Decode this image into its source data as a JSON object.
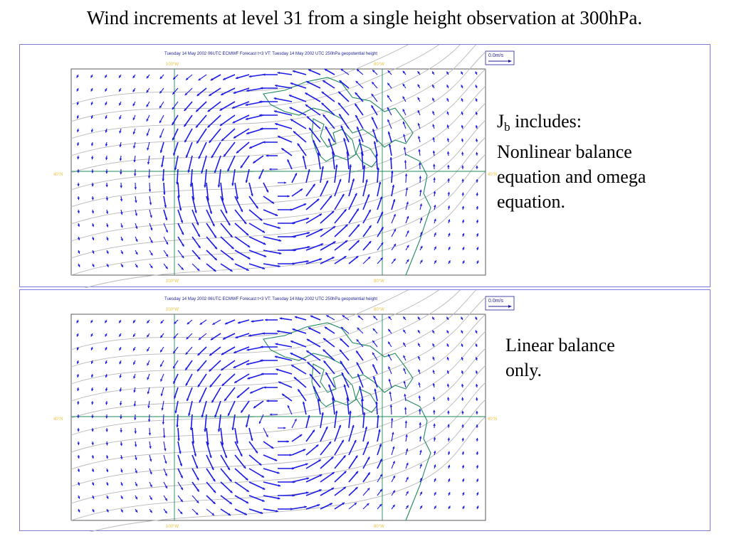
{
  "title": "Wind increments at level 31 from a single height observation at 300hPa.",
  "panels": [
    {
      "header": "Tuesday 14 May 2002 06UTC ECMWF  Forecast t+3 VT: Tuesday 14 May 2002  UTC 250hPa geopotential height",
      "legend": "0.0m/s",
      "lon_labels": [
        "100°W",
        "80°W"
      ],
      "lat_label": "40°N",
      "side_text": {
        "prefix": "J",
        "subscript": "b",
        "rest_line1": " includes:",
        "line2": "Nonlinear balance",
        "line3": "equation and omega",
        "line4": "equation."
      }
    },
    {
      "header": "Tuesday 14 May 2002 06UTC ECMWF  Forecast t+3 VT: Tuesday 14 May 2002  UTC 250hPa geopotential height",
      "legend": "0.0m/s",
      "lon_labels": [
        "100°W",
        "80°W"
      ],
      "lat_label": "40°N",
      "side_text": {
        "line1": "Linear balance",
        "line2": "only."
      }
    }
  ],
  "colors": {
    "arrow": "#1a1ae6",
    "coast": "#1f8a5a",
    "contour": "#b8b8b8",
    "grid": "#1f8a5a",
    "label": "#e8c23a",
    "panel_border": "#7b7bdc"
  }
}
